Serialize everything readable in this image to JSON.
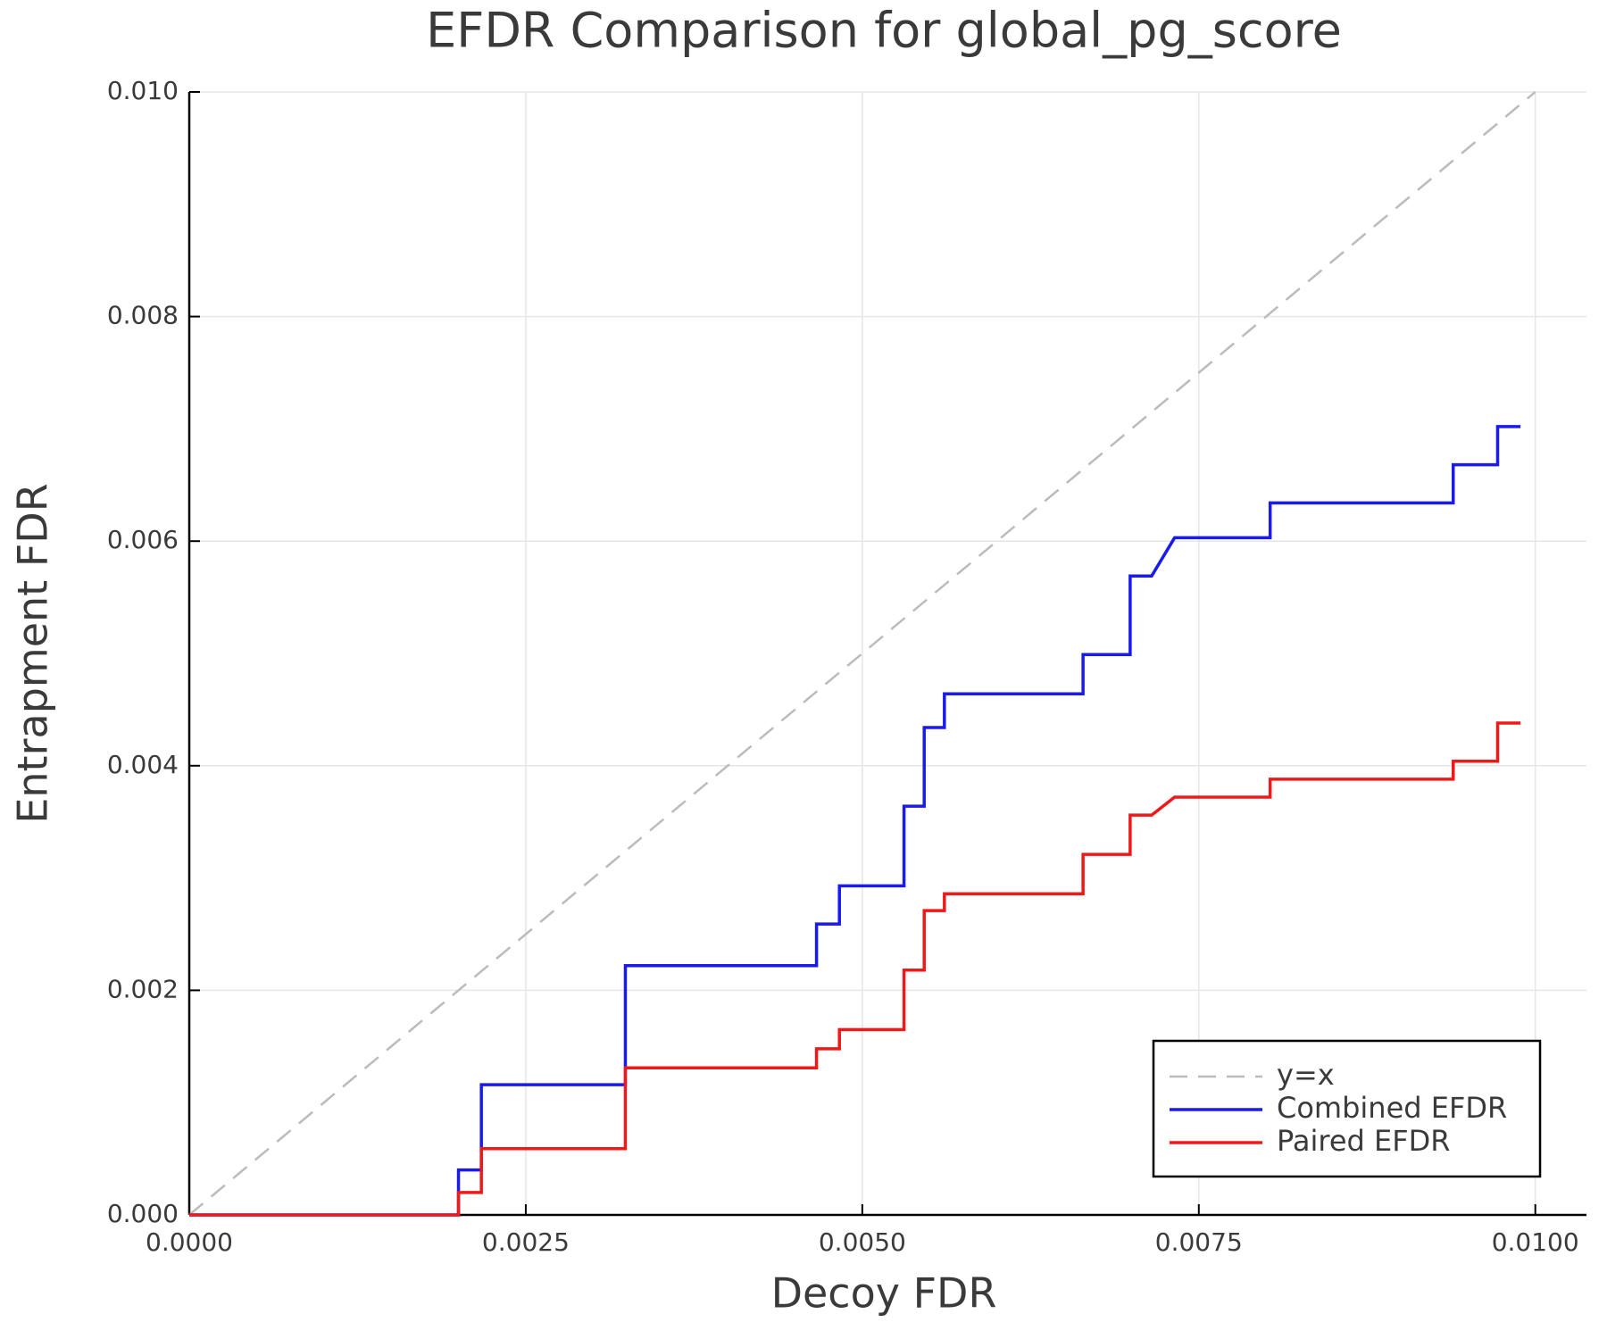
{
  "chart_data": {
    "type": "line",
    "title": "EFDR Comparison for global_pg_score",
    "x_label": "Decoy FDR",
    "y_label": "Entrapment FDR",
    "xlim": [
      0,
      0.01038
    ],
    "ylim": [
      0,
      0.01
    ],
    "xticks": [
      {
        "value": 0,
        "label": "0.0000"
      },
      {
        "value": 0.0025,
        "label": "0.0025"
      },
      {
        "value": 0.005,
        "label": "0.0050"
      },
      {
        "value": 0.0075,
        "label": "0.0075"
      },
      {
        "value": 0.01,
        "label": "0.0100"
      }
    ],
    "yticks": [
      {
        "value": 0,
        "label": "0.000"
      },
      {
        "value": 0.002,
        "label": "0.002"
      },
      {
        "value": 0.004,
        "label": "0.004"
      },
      {
        "value": 0.006,
        "label": "0.006"
      },
      {
        "value": 0.008,
        "label": "0.008"
      },
      {
        "value": 0.01,
        "label": "0.010"
      }
    ],
    "grid": true,
    "legend": "bottom-right",
    "series": [
      {
        "name": "y=x",
        "color": "#bbbbbb",
        "dashed": true,
        "x": [
          0,
          0.01
        ],
        "values": [
          0,
          0.01
        ]
      },
      {
        "name": "Combined EFDR",
        "color": "#1a1aee",
        "dashed": false,
        "x": [
          0,
          0.002,
          0.002,
          0.00217,
          0.00217,
          0.00324,
          0.00324,
          0.00466,
          0.00466,
          0.00483,
          0.00483,
          0.00531,
          0.00531,
          0.00546,
          0.00546,
          0.00561,
          0.00561,
          0.00664,
          0.00664,
          0.00699,
          0.00699,
          0.00715,
          0.00732,
          0.00803,
          0.00803,
          0.00939,
          0.00939,
          0.00972,
          0.00972,
          0.00989
        ],
        "values": [
          0,
          0,
          0.0004,
          0.0004,
          0.00116,
          0.00116,
          0.00222,
          0.00222,
          0.00259,
          0.00259,
          0.00293,
          0.00293,
          0.00364,
          0.00364,
          0.00434,
          0.00434,
          0.00464,
          0.00464,
          0.00499,
          0.00499,
          0.00569,
          0.00569,
          0.00603,
          0.00603,
          0.00634,
          0.00634,
          0.00668,
          0.00668,
          0.00702,
          0.00702
        ]
      },
      {
        "name": "Paired EFDR",
        "color": "#ee1a1a",
        "dashed": false,
        "x": [
          0,
          0.002,
          0.002,
          0.00217,
          0.00217,
          0.00324,
          0.00324,
          0.00466,
          0.00466,
          0.00483,
          0.00483,
          0.00531,
          0.00531,
          0.00546,
          0.00546,
          0.00561,
          0.00561,
          0.00664,
          0.00664,
          0.00699,
          0.00699,
          0.00715,
          0.00732,
          0.00803,
          0.00803,
          0.00939,
          0.00939,
          0.00972,
          0.00972,
          0.00989
        ],
        "values": [
          0,
          0,
          0.0002,
          0.0002,
          0.00059,
          0.00059,
          0.00131,
          0.00131,
          0.00148,
          0.00148,
          0.00165,
          0.00165,
          0.00218,
          0.00218,
          0.00271,
          0.00271,
          0.00286,
          0.00286,
          0.00321,
          0.00321,
          0.00356,
          0.00356,
          0.00372,
          0.00372,
          0.00388,
          0.00388,
          0.00404,
          0.00404,
          0.00438,
          0.00438
        ]
      }
    ]
  }
}
